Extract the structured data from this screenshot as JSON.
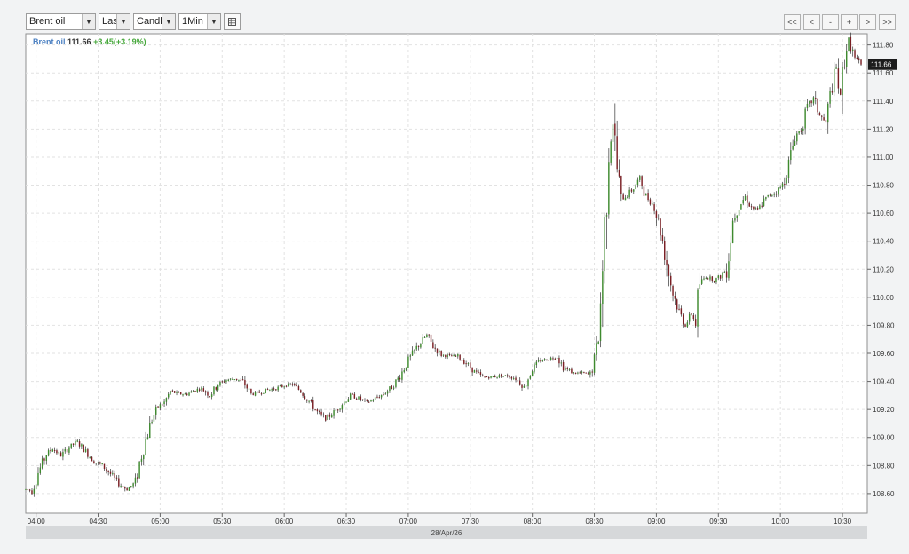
{
  "toolbar": {
    "instrument": "Brent oil",
    "price_type": "Last",
    "chart_style": "Candle",
    "interval": "1Min",
    "nav": [
      "<<",
      "<",
      "-",
      "+",
      ">",
      ">>"
    ]
  },
  "header": {
    "symbol": "Brent oil",
    "last": "111.66",
    "change": "+3.45(+3.19%)"
  },
  "date_label": "28/Apr/26",
  "colors": {
    "up": "#3e8a2e",
    "down": "#7a1f24",
    "wick": "#333333",
    "grid": "#e2e2e2",
    "price_tag_bg": "#1c1c1c"
  },
  "chart_data": {
    "type": "candlestick",
    "interval": "1 minute",
    "x_ticks": [
      "04:00",
      "04:30",
      "05:00",
      "05:30",
      "06:00",
      "06:30",
      "07:00",
      "07:30",
      "08:00",
      "08:30",
      "09:00",
      "09:30",
      "10:00",
      "10:30"
    ],
    "y_ticks": [
      "108.60",
      "108.80",
      "109.00",
      "109.20",
      "109.40",
      "109.60",
      "109.80",
      "110.00",
      "110.20",
      "110.40",
      "110.60",
      "110.80",
      "111.00",
      "111.20",
      "111.40",
      "111.60",
      "111.80"
    ],
    "ylim": [
      108.46,
      111.88
    ],
    "xlim": [
      "03:55",
      "10:42"
    ],
    "last_price": "111.66",
    "grid": true,
    "path": [
      [
        "03:55",
        108.63
      ],
      [
        "03:58",
        108.62
      ],
      [
        "04:01",
        108.75
      ],
      [
        "04:05",
        108.88
      ],
      [
        "04:08",
        108.92
      ],
      [
        "04:12",
        108.87
      ],
      [
        "04:16",
        108.93
      ],
      [
        "04:20",
        108.97
      ],
      [
        "04:24",
        108.9
      ],
      [
        "04:28",
        108.83
      ],
      [
        "04:32",
        108.8
      ],
      [
        "04:36",
        108.74
      ],
      [
        "04:40",
        108.67
      ],
      [
        "04:44",
        108.63
      ],
      [
        "04:48",
        108.68
      ],
      [
        "04:50",
        108.82
      ],
      [
        "04:53",
        108.98
      ],
      [
        "04:56",
        109.13
      ],
      [
        "04:59",
        109.22
      ],
      [
        "05:02",
        109.25
      ],
      [
        "05:05",
        109.33
      ],
      [
        "05:09",
        109.31
      ],
      [
        "05:13",
        109.31
      ],
      [
        "05:17",
        109.34
      ],
      [
        "05:20",
        109.35
      ],
      [
        "05:24",
        109.3
      ],
      [
        "05:28",
        109.38
      ],
      [
        "05:32",
        109.41
      ],
      [
        "05:36",
        109.42
      ],
      [
        "05:40",
        109.4
      ],
      [
        "05:44",
        109.31
      ],
      [
        "05:48",
        109.32
      ],
      [
        "05:52",
        109.34
      ],
      [
        "05:56",
        109.35
      ],
      [
        "06:00",
        109.37
      ],
      [
        "06:04",
        109.38
      ],
      [
        "06:08",
        109.33
      ],
      [
        "06:12",
        109.26
      ],
      [
        "06:16",
        109.18
      ],
      [
        "06:20",
        109.13
      ],
      [
        "06:24",
        109.18
      ],
      [
        "06:28",
        109.24
      ],
      [
        "06:32",
        109.3
      ],
      [
        "06:36",
        109.28
      ],
      [
        "06:40",
        109.25
      ],
      [
        "06:44",
        109.28
      ],
      [
        "06:48",
        109.31
      ],
      [
        "06:52",
        109.36
      ],
      [
        "06:56",
        109.44
      ],
      [
        "07:00",
        109.55
      ],
      [
        "07:04",
        109.64
      ],
      [
        "07:09",
        109.73
      ],
      [
        "07:12",
        109.65
      ],
      [
        "07:16",
        109.59
      ],
      [
        "07:20",
        109.58
      ],
      [
        "07:24",
        109.58
      ],
      [
        "07:28",
        109.53
      ],
      [
        "07:32",
        109.47
      ],
      [
        "07:36",
        109.43
      ],
      [
        "07:40",
        109.43
      ],
      [
        "07:44",
        109.44
      ],
      [
        "07:48",
        109.44
      ],
      [
        "07:52",
        109.42
      ],
      [
        "07:56",
        109.36
      ],
      [
        "08:00",
        109.49
      ],
      [
        "08:04",
        109.55
      ],
      [
        "08:08",
        109.56
      ],
      [
        "08:12",
        109.58
      ],
      [
        "08:15",
        109.5
      ],
      [
        "08:20",
        109.46
      ],
      [
        "08:24",
        109.46
      ],
      [
        "08:28",
        109.45
      ],
      [
        "08:31",
        109.6
      ],
      [
        "08:33",
        109.95
      ],
      [
        "08:35",
        110.5
      ],
      [
        "08:37",
        111.07
      ],
      [
        "08:39",
        111.25
      ],
      [
        "08:41",
        110.92
      ],
      [
        "08:43",
        110.7
      ],
      [
        "08:46",
        110.73
      ],
      [
        "08:49",
        110.78
      ],
      [
        "08:52",
        110.85
      ],
      [
        "08:55",
        110.72
      ],
      [
        "08:59",
        110.65
      ],
      [
        "09:02",
        110.48
      ],
      [
        "09:05",
        110.24
      ],
      [
        "09:08",
        110.03
      ],
      [
        "09:11",
        109.9
      ],
      [
        "09:14",
        109.8
      ],
      [
        "09:17",
        109.88
      ],
      [
        "09:19",
        109.82
      ],
      [
        "09:21",
        110.1
      ],
      [
        "09:24",
        110.15
      ],
      [
        "09:28",
        110.12
      ],
      [
        "09:31",
        110.15
      ],
      [
        "09:34",
        110.2
      ],
      [
        "09:37",
        110.55
      ],
      [
        "09:40",
        110.65
      ],
      [
        "09:43",
        110.72
      ],
      [
        "09:46",
        110.64
      ],
      [
        "09:49",
        110.62
      ],
      [
        "09:52",
        110.69
      ],
      [
        "09:55",
        110.73
      ],
      [
        "09:58",
        110.75
      ],
      [
        "10:01",
        110.8
      ],
      [
        "10:04",
        110.95
      ],
      [
        "10:07",
        111.15
      ],
      [
        "10:10",
        111.2
      ],
      [
        "10:13",
        111.35
      ],
      [
        "10:16",
        111.42
      ],
      [
        "10:19",
        111.3
      ],
      [
        "10:22",
        111.24
      ],
      [
        "10:25",
        111.52
      ],
      [
        "10:27",
        111.63
      ],
      [
        "10:29",
        111.42
      ],
      [
        "10:31",
        111.72
      ],
      [
        "10:33",
        111.84
      ],
      [
        "10:36",
        111.7
      ],
      [
        "10:39",
        111.66
      ]
    ]
  }
}
